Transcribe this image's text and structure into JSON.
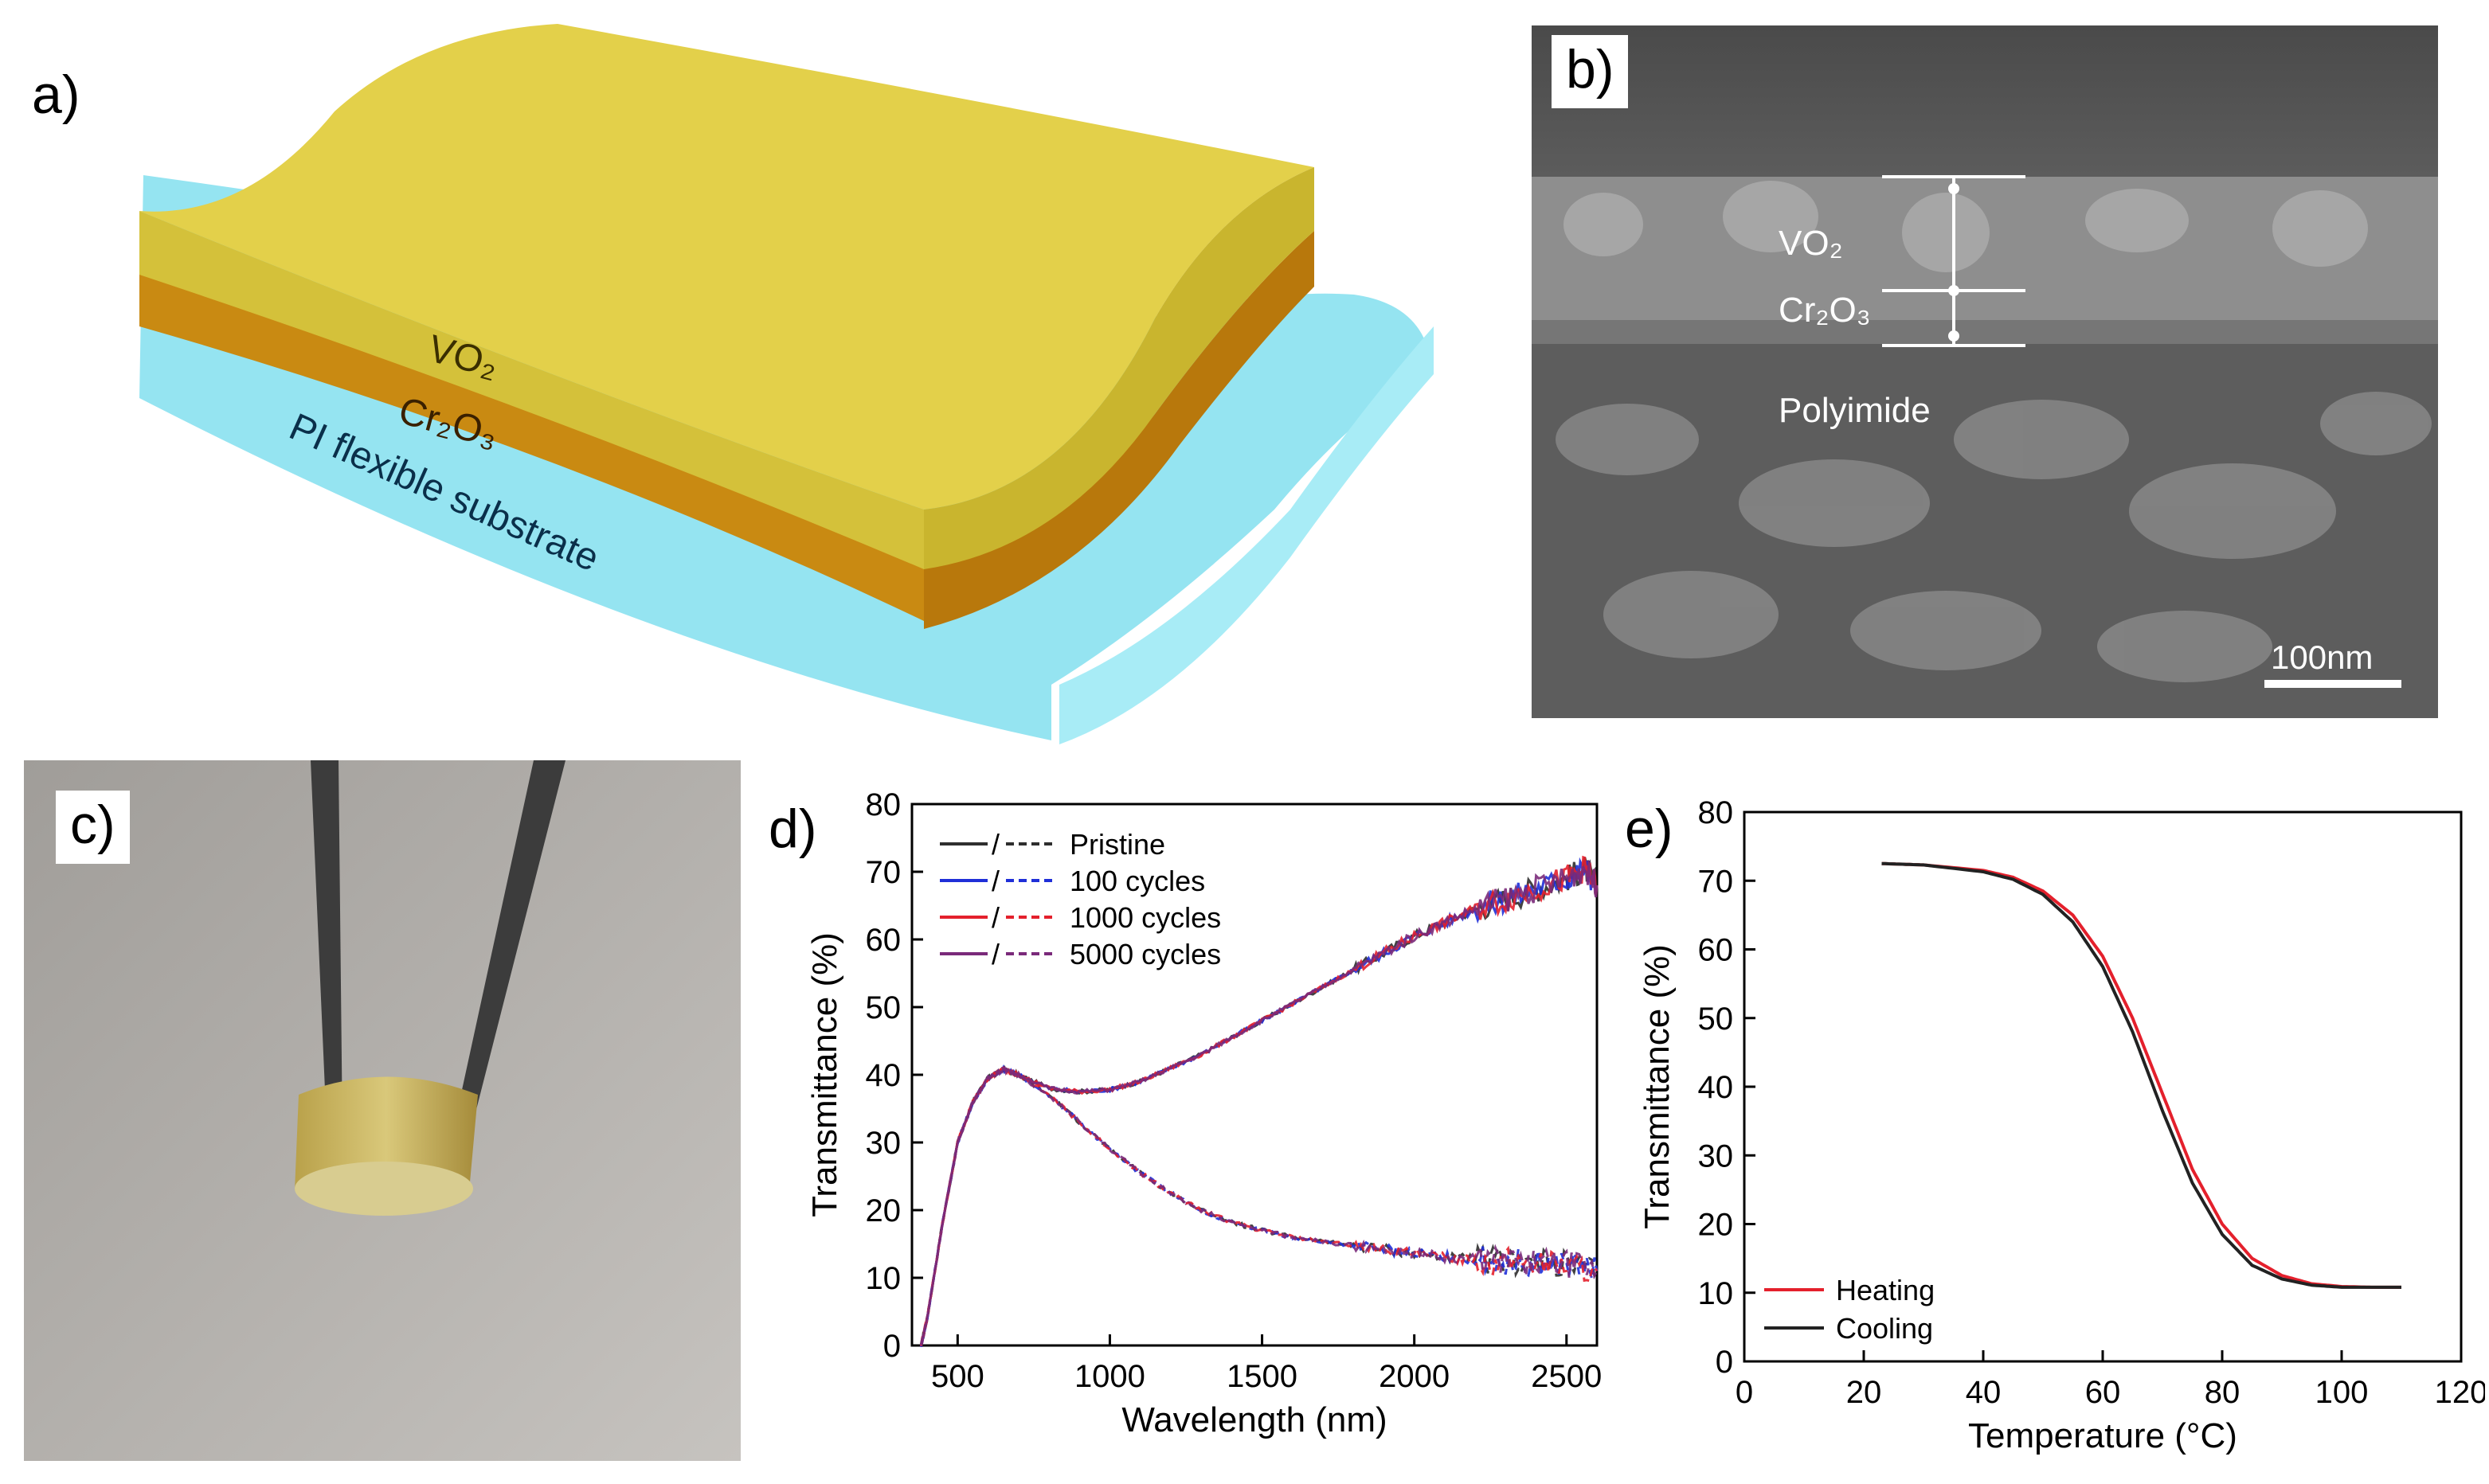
{
  "panels": {
    "a": {
      "label": "a)",
      "layers": [
        "VO₂",
        "Cr₂O₃",
        "PI flexible substrate"
      ],
      "colors": {
        "vo2": "#d9c53a",
        "cr2o3": "#c98a12",
        "pi": "#8fe3f0"
      }
    },
    "b": {
      "label": "b)",
      "layers": [
        "VO₂",
        "Cr₂O₃",
        "Polyimide"
      ],
      "scalebar": "100nm"
    },
    "c": {
      "label": "c)"
    },
    "d": {
      "label": "d)"
    },
    "e": {
      "label": "e)"
    }
  },
  "chart_data": [
    {
      "type": "line",
      "panel": "d",
      "xlabel": "Wavelength (nm)",
      "ylabel": "Transmittance (%)",
      "xlim": [
        350,
        2600
      ],
      "ylim": [
        0,
        80
      ],
      "xticks": [
        500,
        1000,
        1500,
        2000,
        2500
      ],
      "yticks": [
        0,
        10,
        20,
        30,
        40,
        50,
        60,
        70,
        80
      ],
      "legend": {
        "placement": "top-left",
        "separator": "/",
        "entries": [
          "Pristine",
          "100 cycles",
          "1000 cycles",
          "5000 cycles"
        ]
      },
      "series_colors": [
        "#2e2e2e",
        "#1f2fd8",
        "#e4202c",
        "#7a2a7a"
      ],
      "curves": [
        {
          "style": "solid",
          "x": [
            380,
            400,
            450,
            500,
            550,
            600,
            650,
            700,
            800,
            900,
            1000,
            1100,
            1200,
            1300,
            1400,
            1500,
            1600,
            1700,
            1800,
            1900,
            2000,
            2100,
            2200,
            2300,
            2400,
            2500,
            2560,
            2600
          ],
          "y": [
            0,
            4,
            18,
            30,
            36,
            39.5,
            40.8,
            40,
            38,
            37.5,
            37.8,
            39,
            41,
            43,
            45.5,
            48,
            50.5,
            53,
            55.5,
            58,
            60.5,
            62.5,
            64.5,
            66,
            67.5,
            69,
            70.5,
            68
          ]
        },
        {
          "style": "dashed",
          "x": [
            380,
            400,
            450,
            500,
            550,
            600,
            650,
            700,
            800,
            900,
            1000,
            1100,
            1200,
            1300,
            1400,
            1500,
            1600,
            1700,
            1800,
            1900,
            2000,
            2100,
            2200,
            2300,
            2400,
            2500,
            2600
          ],
          "y": [
            0,
            4,
            18,
            30,
            36,
            39.5,
            40.8,
            40,
            37,
            33,
            29,
            25.5,
            22.5,
            20,
            18.2,
            17,
            16,
            15.3,
            14.8,
            14.2,
            13.6,
            13.1,
            12.7,
            12.4,
            12.2,
            12,
            11
          ]
        }
      ]
    },
    {
      "type": "line",
      "panel": "e",
      "xlabel": "Temperature (°C)",
      "ylabel": "Transmittance (%)",
      "xlim": [
        0,
        120
      ],
      "ylim": [
        0,
        80
      ],
      "xticks": [
        0,
        20,
        40,
        60,
        80,
        100,
        120
      ],
      "yticks": [
        0,
        10,
        20,
        30,
        40,
        50,
        60,
        70,
        80
      ],
      "legend": {
        "placement": "bottom-left"
      },
      "series": [
        {
          "name": "Heating",
          "color": "#e4202c",
          "x": [
            23,
            30,
            40,
            45,
            50,
            55,
            60,
            65,
            70,
            75,
            80,
            85,
            90,
            95,
            100,
            105,
            110
          ],
          "y": [
            72.5,
            72.3,
            71.5,
            70.5,
            68.5,
            65,
            59,
            50,
            39,
            28,
            20,
            15,
            12.5,
            11.3,
            10.9,
            10.8,
            10.8
          ]
        },
        {
          "name": "Cooling",
          "color": "#222222",
          "x": [
            23,
            30,
            40,
            45,
            50,
            55,
            60,
            65,
            70,
            75,
            80,
            85,
            90,
            95,
            100,
            105,
            110
          ],
          "y": [
            72.5,
            72.3,
            71.3,
            70.2,
            68,
            64,
            57.5,
            48,
            36.5,
            26,
            18.5,
            14,
            12,
            11.1,
            10.8,
            10.8,
            10.8
          ]
        }
      ]
    }
  ]
}
